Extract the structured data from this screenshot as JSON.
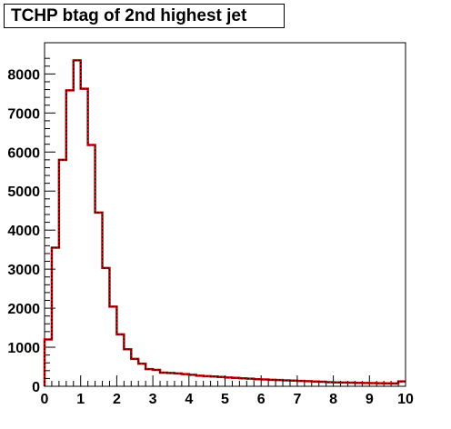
{
  "chart_data": {
    "type": "histogram",
    "title": "TCHP btag of 2nd highest jet",
    "xlabel": "",
    "ylabel": "",
    "xlim": [
      0,
      10
    ],
    "ylim": [
      0,
      8800
    ],
    "grid": false,
    "bin_width": 0.2,
    "bin_edges_start": 0,
    "xticks": [
      "0",
      "1",
      "2",
      "3",
      "4",
      "5",
      "6",
      "7",
      "8",
      "9",
      "10"
    ],
    "yticks": [
      "0",
      "1000",
      "2000",
      "3000",
      "4000",
      "5000",
      "6000",
      "7000",
      "8000"
    ],
    "series": [
      {
        "color": "#cc0000",
        "style": "solid",
        "values": [
          1200,
          3550,
          5800,
          7580,
          8350,
          7620,
          6180,
          4450,
          3030,
          2040,
          1330,
          950,
          700,
          580,
          440,
          420,
          350,
          340,
          330,
          310,
          295,
          270,
          260,
          250,
          240,
          225,
          215,
          205,
          195,
          180,
          175,
          165,
          160,
          150,
          145,
          138,
          130,
          122,
          115,
          105,
          100,
          95,
          92,
          88,
          85,
          82,
          78,
          75,
          72,
          125
        ]
      },
      {
        "color": "#000000",
        "style": "dashed",
        "values": [
          1200,
          3550,
          5800,
          7580,
          8350,
          7620,
          6180,
          4450,
          3030,
          2040,
          1330,
          950,
          700,
          580,
          440,
          420,
          350,
          340,
          330,
          310,
          295,
          270,
          260,
          250,
          240,
          225,
          215,
          205,
          195,
          180,
          175,
          165,
          160,
          150,
          145,
          138,
          130,
          122,
          115,
          105,
          100,
          95,
          92,
          88,
          85,
          82,
          78,
          75,
          72,
          125
        ]
      }
    ]
  }
}
